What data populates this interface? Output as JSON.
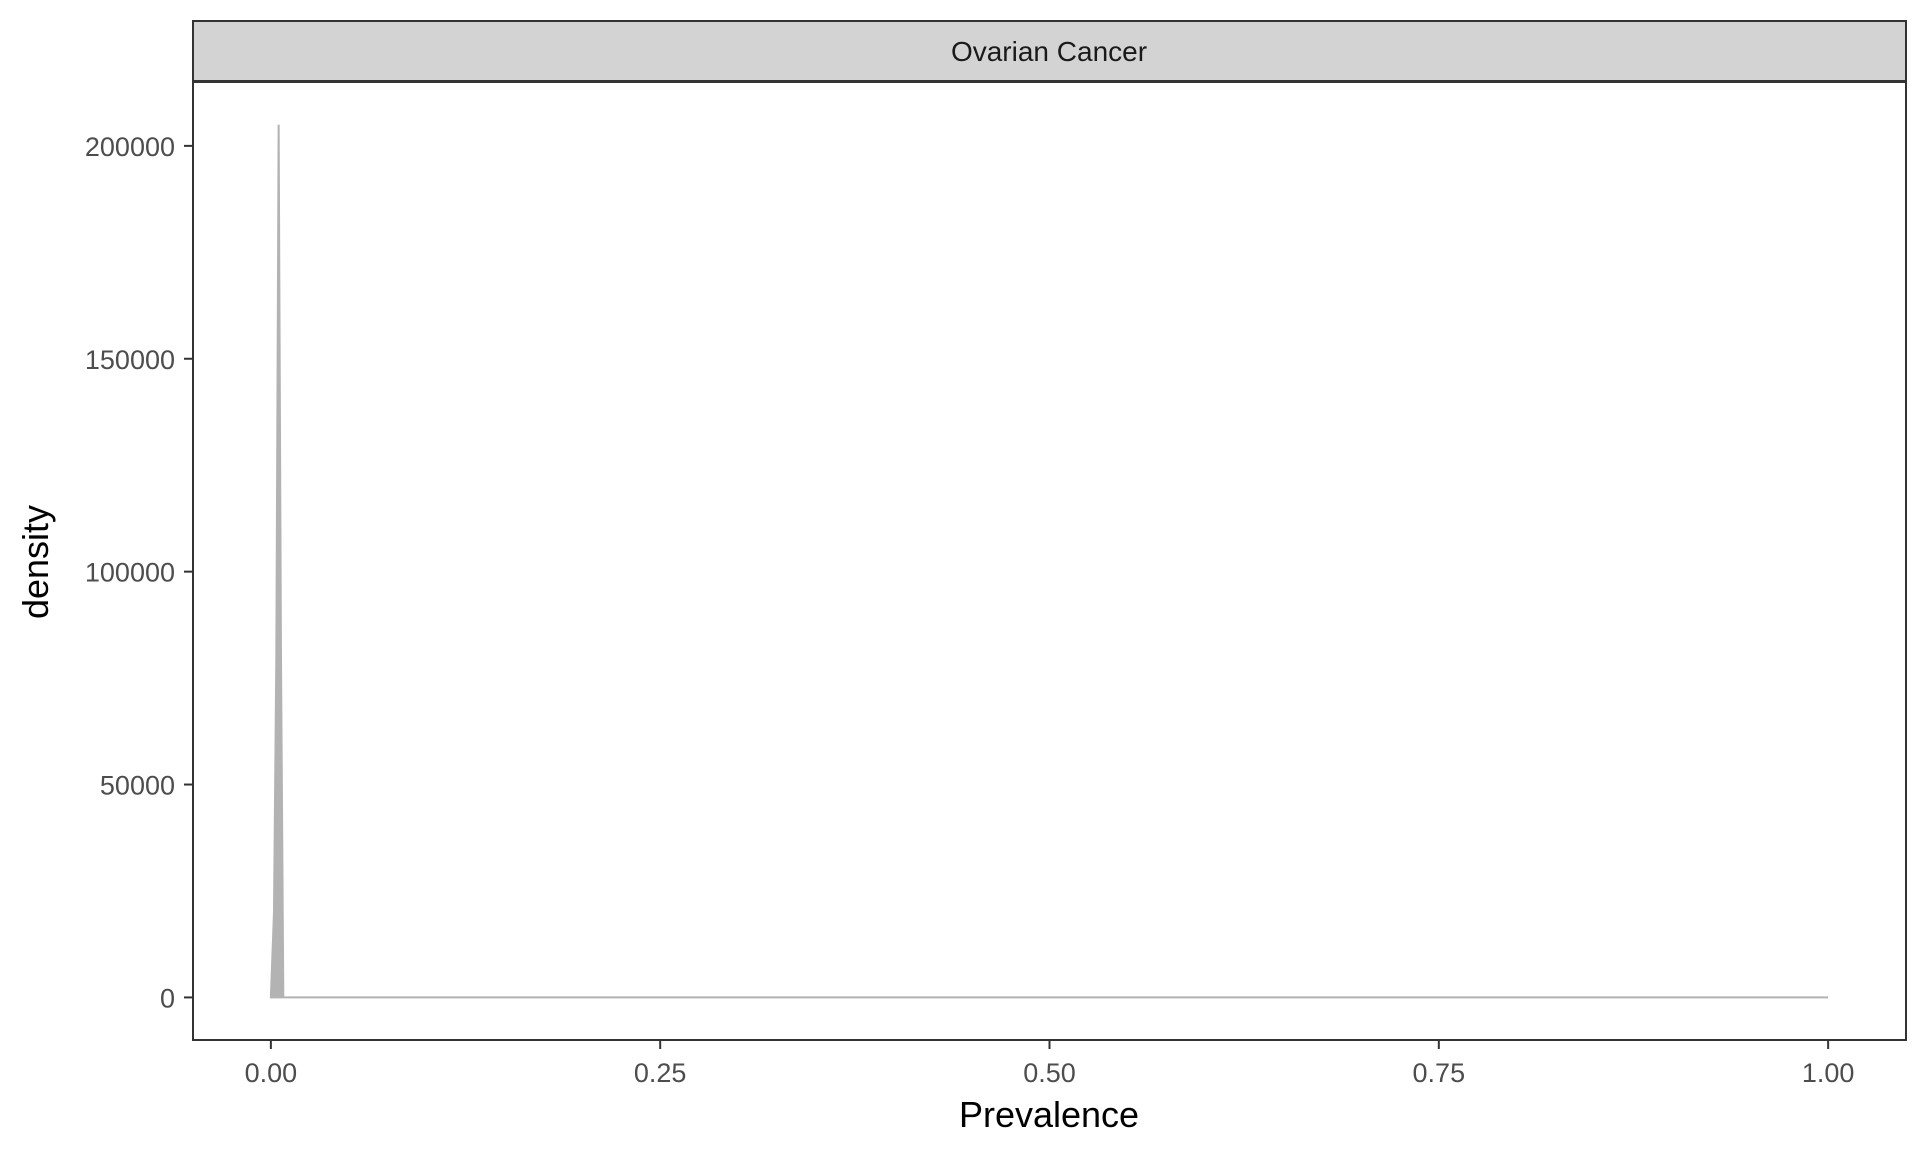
{
  "colors": {
    "background": "#ffffff",
    "strip_fill": "#d3d3d3",
    "panel_border": "#333333",
    "density_fill": "#b3b3b3",
    "density_line": "#b3b3b3",
    "tick_text": "#4d4d4d"
  },
  "chart_data": {
    "type": "area",
    "facet": "Ovarian Cancer",
    "title": "",
    "xlabel": "Prevalence",
    "ylabel": "density",
    "xlim": [
      -0.05,
      1.05
    ],
    "ylim": [
      -10000,
      215000
    ],
    "grid": false,
    "x_ticks": [
      0,
      0.25,
      0.5,
      0.75,
      1
    ],
    "x_tick_labels": [
      "0.00",
      "0.25",
      "0.50",
      "0.75",
      "1.00"
    ],
    "y_ticks": [
      0,
      50000,
      100000,
      150000,
      200000
    ],
    "y_tick_labels": [
      "0",
      "50000",
      "100000",
      "150000",
      "200000"
    ],
    "series": [
      {
        "x": [
          0.0,
          0.002,
          0.0035,
          0.005,
          0.0065,
          0.008,
          0.03,
          0.2,
          0.5,
          0.8,
          1.0
        ],
        "y": [
          0,
          20000,
          80000,
          205000,
          80000,
          0,
          0,
          0,
          0,
          0,
          0
        ]
      }
    ]
  }
}
